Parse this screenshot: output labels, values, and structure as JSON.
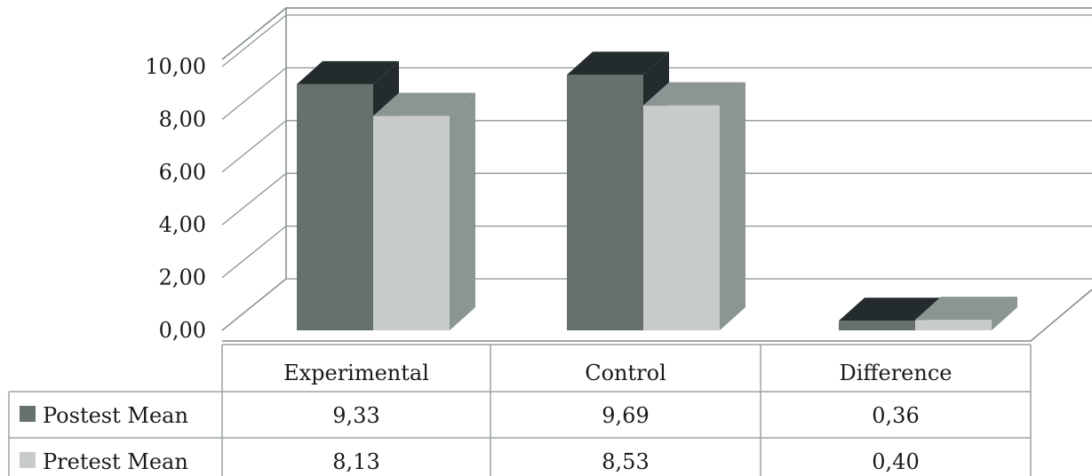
{
  "chart_data": {
    "type": "bar",
    "title": "",
    "xlabel": "",
    "ylabel": "",
    "ylim": [
      0,
      10
    ],
    "y_ticks": [
      "0,00",
      "2,00",
      "4,00",
      "6,00",
      "8,00",
      "10,00"
    ],
    "categories": [
      "Experimental",
      "Control",
      "Difference"
    ],
    "series": [
      {
        "name": "Postest Mean",
        "values": [
          9.33,
          9.69,
          0.36
        ],
        "labels": [
          "9,33",
          "9,69",
          "0,36"
        ],
        "color": "#66706d",
        "side_color": "#232b2c"
      },
      {
        "name": "Pretest Mean",
        "values": [
          8.13,
          8.53,
          0.4
        ],
        "labels": [
          "8,13",
          "8,53",
          "0,40"
        ],
        "color": "#c8cbcb",
        "side_color": "#8b9594"
      }
    ],
    "grid": true,
    "legend": "data-table",
    "style": "3d-clustered-column"
  }
}
